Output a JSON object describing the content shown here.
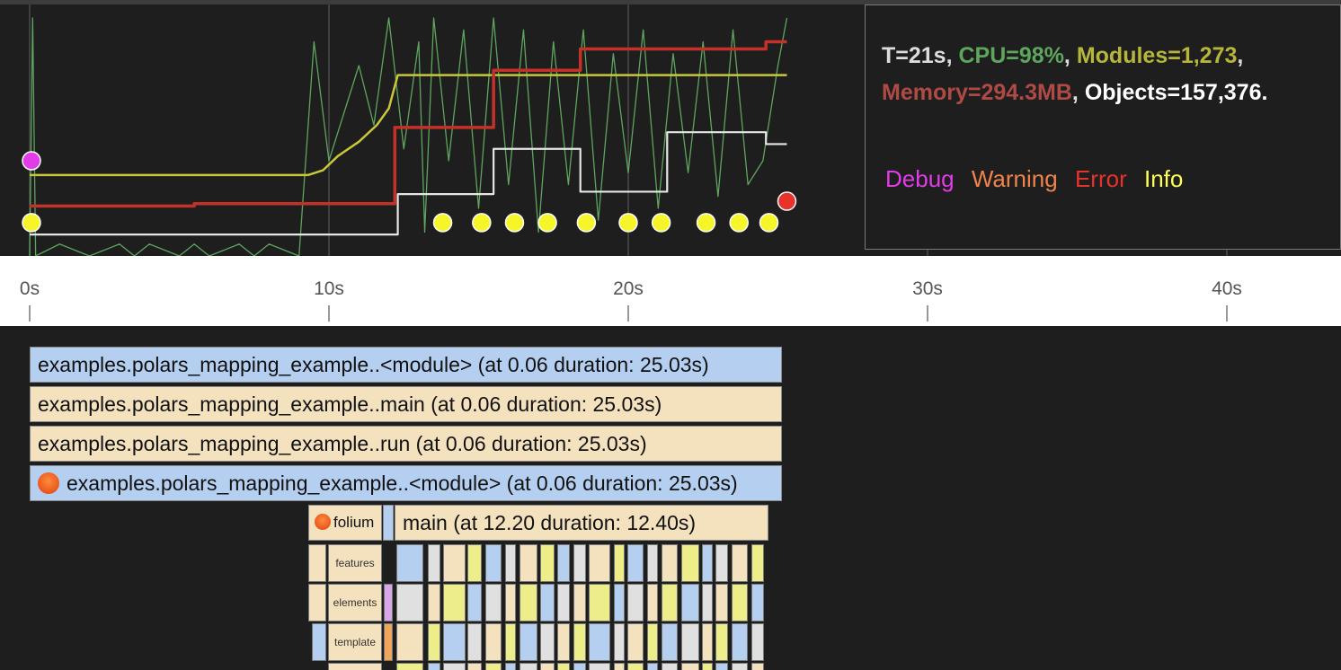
{
  "stats": {
    "time": "T=21s",
    "cpu": "CPU=98%",
    "modules": "Modules=1,273",
    "memory": "Memory=294.3MB",
    "objects": "Objects=157,376."
  },
  "legend": [
    {
      "label": "Debug",
      "color": "#e23be8"
    },
    {
      "label": "Warning",
      "color": "#f0834a"
    },
    {
      "label": "Error",
      "color": "#e8322c"
    },
    {
      "label": "Info",
      "color": "#ffff55"
    }
  ],
  "colors": {
    "time": "#dddddd",
    "cpu": "#5ea55e",
    "modules": "#b6b63a",
    "memory": "#b04a45",
    "objects": "#ffffff"
  },
  "axis_ticks": [
    "0s",
    "10s",
    "20s",
    "30s",
    "40s"
  ],
  "frames": [
    {
      "label": "examples.polars_mapping_example..<module> (at 0.06 duration: 25.03s)",
      "color": "blue",
      "icon": ""
    },
    {
      "label": "examples.polars_mapping_example..main (at 0.06 duration: 25.03s)",
      "color": "tan",
      "icon": ""
    },
    {
      "label": "examples.polars_mapping_example..run (at 0.06 duration: 25.03s)",
      "color": "tan",
      "icon": ""
    },
    {
      "label": "examples.polars_mapping_example..<module> (at 0.06 duration: 25.03s)",
      "color": "blue",
      "icon": "angry-face-icon"
    },
    {
      "label": "main (at 12.20 duration: 12.40s)",
      "color": "tan",
      "icon": ""
    }
  ],
  "sub_frames": [
    {
      "label": "folium",
      "icon": "angry-face-icon"
    },
    {
      "label": "features",
      "icon": "angry-face-icon"
    },
    {
      "label": "elements",
      "icon": "angry-face-icon"
    },
    {
      "label": "template",
      "icon": "angry-face-icon"
    }
  ],
  "chart_data": {
    "type": "line",
    "x_unit": "s",
    "xlim": [
      0,
      45
    ],
    "series": [
      {
        "name": "CPU",
        "color": "#5ea55e",
        "x": [
          0,
          0.1,
          0.2,
          1,
          2,
          3,
          3.5,
          4,
          5,
          5.5,
          6,
          7,
          7.5,
          8,
          9,
          9.5,
          10,
          10.5,
          11,
          11.5,
          12,
          12.5,
          13,
          13.2,
          13.5,
          14,
          14.5,
          15,
          15.5,
          16,
          16.5,
          17,
          17.5,
          18,
          18.5,
          19,
          19.5,
          20,
          20.5,
          21,
          21.5,
          22,
          22.5,
          23,
          23.5,
          24,
          24.5,
          25,
          25.3
        ],
        "y": [
          0,
          100,
          0,
          5,
          0,
          5,
          0,
          5,
          0,
          5,
          0,
          5,
          0,
          5,
          0,
          90,
          40,
          60,
          80,
          55,
          100,
          45,
          90,
          10,
          100,
          40,
          95,
          20,
          100,
          30,
          95,
          10,
          90,
          30,
          95,
          15,
          85,
          35,
          95,
          20,
          85,
          35,
          90,
          25,
          95,
          30,
          40,
          80,
          100
        ]
      },
      {
        "name": "Modules",
        "color": "#c8c83a",
        "x": [
          0,
          9.3,
          9.8,
          10.3,
          11,
          11.6,
          12,
          12.3,
          25.3
        ],
        "y": [
          34,
          34,
          36,
          42,
          48,
          55,
          62,
          76,
          76
        ]
      },
      {
        "name": "Memory",
        "color": "#c43128",
        "x": [
          0,
          5.5,
          12,
          12.2,
          15.3,
          15.5,
          18.2,
          18.4,
          24.4,
          24.6,
          25.3
        ],
        "y": [
          21,
          22,
          22,
          54,
          54,
          78,
          78,
          87,
          87,
          90,
          90
        ]
      },
      {
        "name": "Objects",
        "color": "#e6e6e6",
        "x": [
          0,
          12,
          12.3,
          15.3,
          15.5,
          18.2,
          18.4,
          21.1,
          21.3,
          24.4,
          24.6,
          25.3
        ],
        "y": [
          9,
          9,
          26,
          26,
          45,
          45,
          27,
          27,
          52,
          52,
          47,
          47
        ]
      }
    ],
    "events": [
      {
        "type": "Debug",
        "x": 0.06,
        "y": 40
      },
      {
        "type": "Info",
        "x": 0.06,
        "y": 14
      },
      {
        "type": "Info",
        "x": 13.8,
        "y": 14
      },
      {
        "type": "Info",
        "x": 15.1,
        "y": 14
      },
      {
        "type": "Info",
        "x": 16.2,
        "y": 14
      },
      {
        "type": "Info",
        "x": 17.3,
        "y": 14
      },
      {
        "type": "Info",
        "x": 18.6,
        "y": 14
      },
      {
        "type": "Info",
        "x": 20,
        "y": 14
      },
      {
        "type": "Info",
        "x": 21.1,
        "y": 14
      },
      {
        "type": "Info",
        "x": 22.6,
        "y": 14
      },
      {
        "type": "Info",
        "x": 23.7,
        "y": 14
      },
      {
        "type": "Info",
        "x": 24.7,
        "y": 14
      },
      {
        "type": "Error",
        "x": 25.3,
        "y": 23
      }
    ]
  }
}
